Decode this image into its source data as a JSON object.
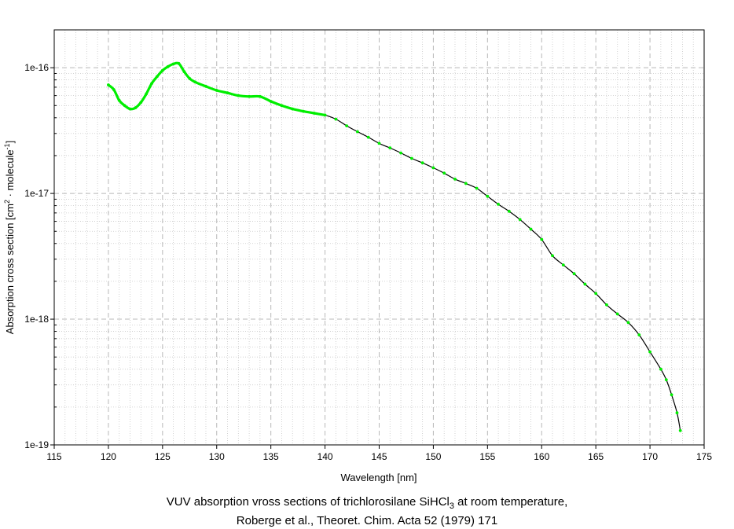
{
  "chart_data": {
    "type": "line",
    "title": "",
    "xlabel": "Wavelength [nm]",
    "ylabel": {
      "prefix": "Absorption cross section [cm",
      "sup1": "2",
      "middle": " · molecule",
      "sup2": "-1",
      "suffix": "]"
    },
    "xlim": [
      115,
      175
    ],
    "ylim": [
      1e-19,
      2e-16
    ],
    "yscale": "log",
    "grid": true,
    "x_ticks": [
      115,
      120,
      125,
      130,
      135,
      140,
      145,
      150,
      155,
      160,
      165,
      170,
      175
    ],
    "y_ticks": [
      {
        "value": 1e-16,
        "label": "1e-16"
      },
      {
        "value": 1e-17,
        "label": "1e-17"
      },
      {
        "value": 1e-18,
        "label": "1e-18"
      },
      {
        "value": 1e-19,
        "label": "1e-19"
      }
    ],
    "series": [
      {
        "color": "#00ee00",
        "line_color": "#000000",
        "x": [
          120.0,
          120.5,
          121.0,
          121.5,
          122.0,
          122.5,
          123.0,
          123.5,
          124.0,
          124.5,
          125.0,
          125.5,
          126.0,
          126.5,
          127.0,
          127.5,
          128.0,
          129.0,
          130.0,
          131.0,
          132.0,
          133.0,
          134.0,
          135.0,
          136.0,
          137.0,
          138.0,
          139.0,
          140.0,
          141.0,
          142.0,
          143.0,
          144.0,
          145.0,
          146.0,
          147.0,
          148.0,
          149.0,
          150.0,
          151.0,
          152.0,
          153.0,
          154.0,
          155.0,
          156.0,
          157.0,
          158.0,
          159.0,
          160.0,
          161.0,
          162.0,
          163.0,
          164.0,
          165.0,
          166.0,
          167.0,
          168.0,
          169.0,
          170.0,
          171.0,
          171.5,
          172.0,
          172.5,
          172.8
        ],
        "y": [
          7.3e-17,
          6.7e-17,
          5.5e-17,
          5e-17,
          4.7e-17,
          4.8e-17,
          5.3e-17,
          6.2e-17,
          7.5e-17,
          8.5e-17,
          9.5e-17,
          1.02e-16,
          1.07e-16,
          1.08e-16,
          9.3e-17,
          8.2e-17,
          7.7e-17,
          7.1e-17,
          6.6e-17,
          6.3e-17,
          6e-17,
          5.9e-17,
          5.9e-17,
          5.4e-17,
          5e-17,
          4.7e-17,
          4.5e-17,
          4.35e-17,
          4.2e-17,
          3.9e-17,
          3.45e-17,
          3.1e-17,
          2.8e-17,
          2.5e-17,
          2.3e-17,
          2.1e-17,
          1.9e-17,
          1.75e-17,
          1.6e-17,
          1.45e-17,
          1.3e-17,
          1.2e-17,
          1.1e-17,
          9.5e-18,
          8.2e-18,
          7.2e-18,
          6.2e-18,
          5.2e-18,
          4.3e-18,
          3.2e-18,
          2.7e-18,
          2.3e-18,
          1.9e-18,
          1.6e-18,
          1.3e-18,
          1.1e-18,
          9.4e-19,
          7.5e-19,
          5.5e-19,
          4e-19,
          3.3e-19,
          2.5e-19,
          1.8e-19,
          1.3e-19
        ]
      }
    ]
  },
  "caption": {
    "line1_prefix": "VUV absorption vross sections of trichlorosilane SiHCl",
    "line1_sub": "3",
    "line1_suffix": " at room temperature,",
    "line2": "Roberge et al., Theoret. Chim. Acta 52 (1979) 171"
  }
}
